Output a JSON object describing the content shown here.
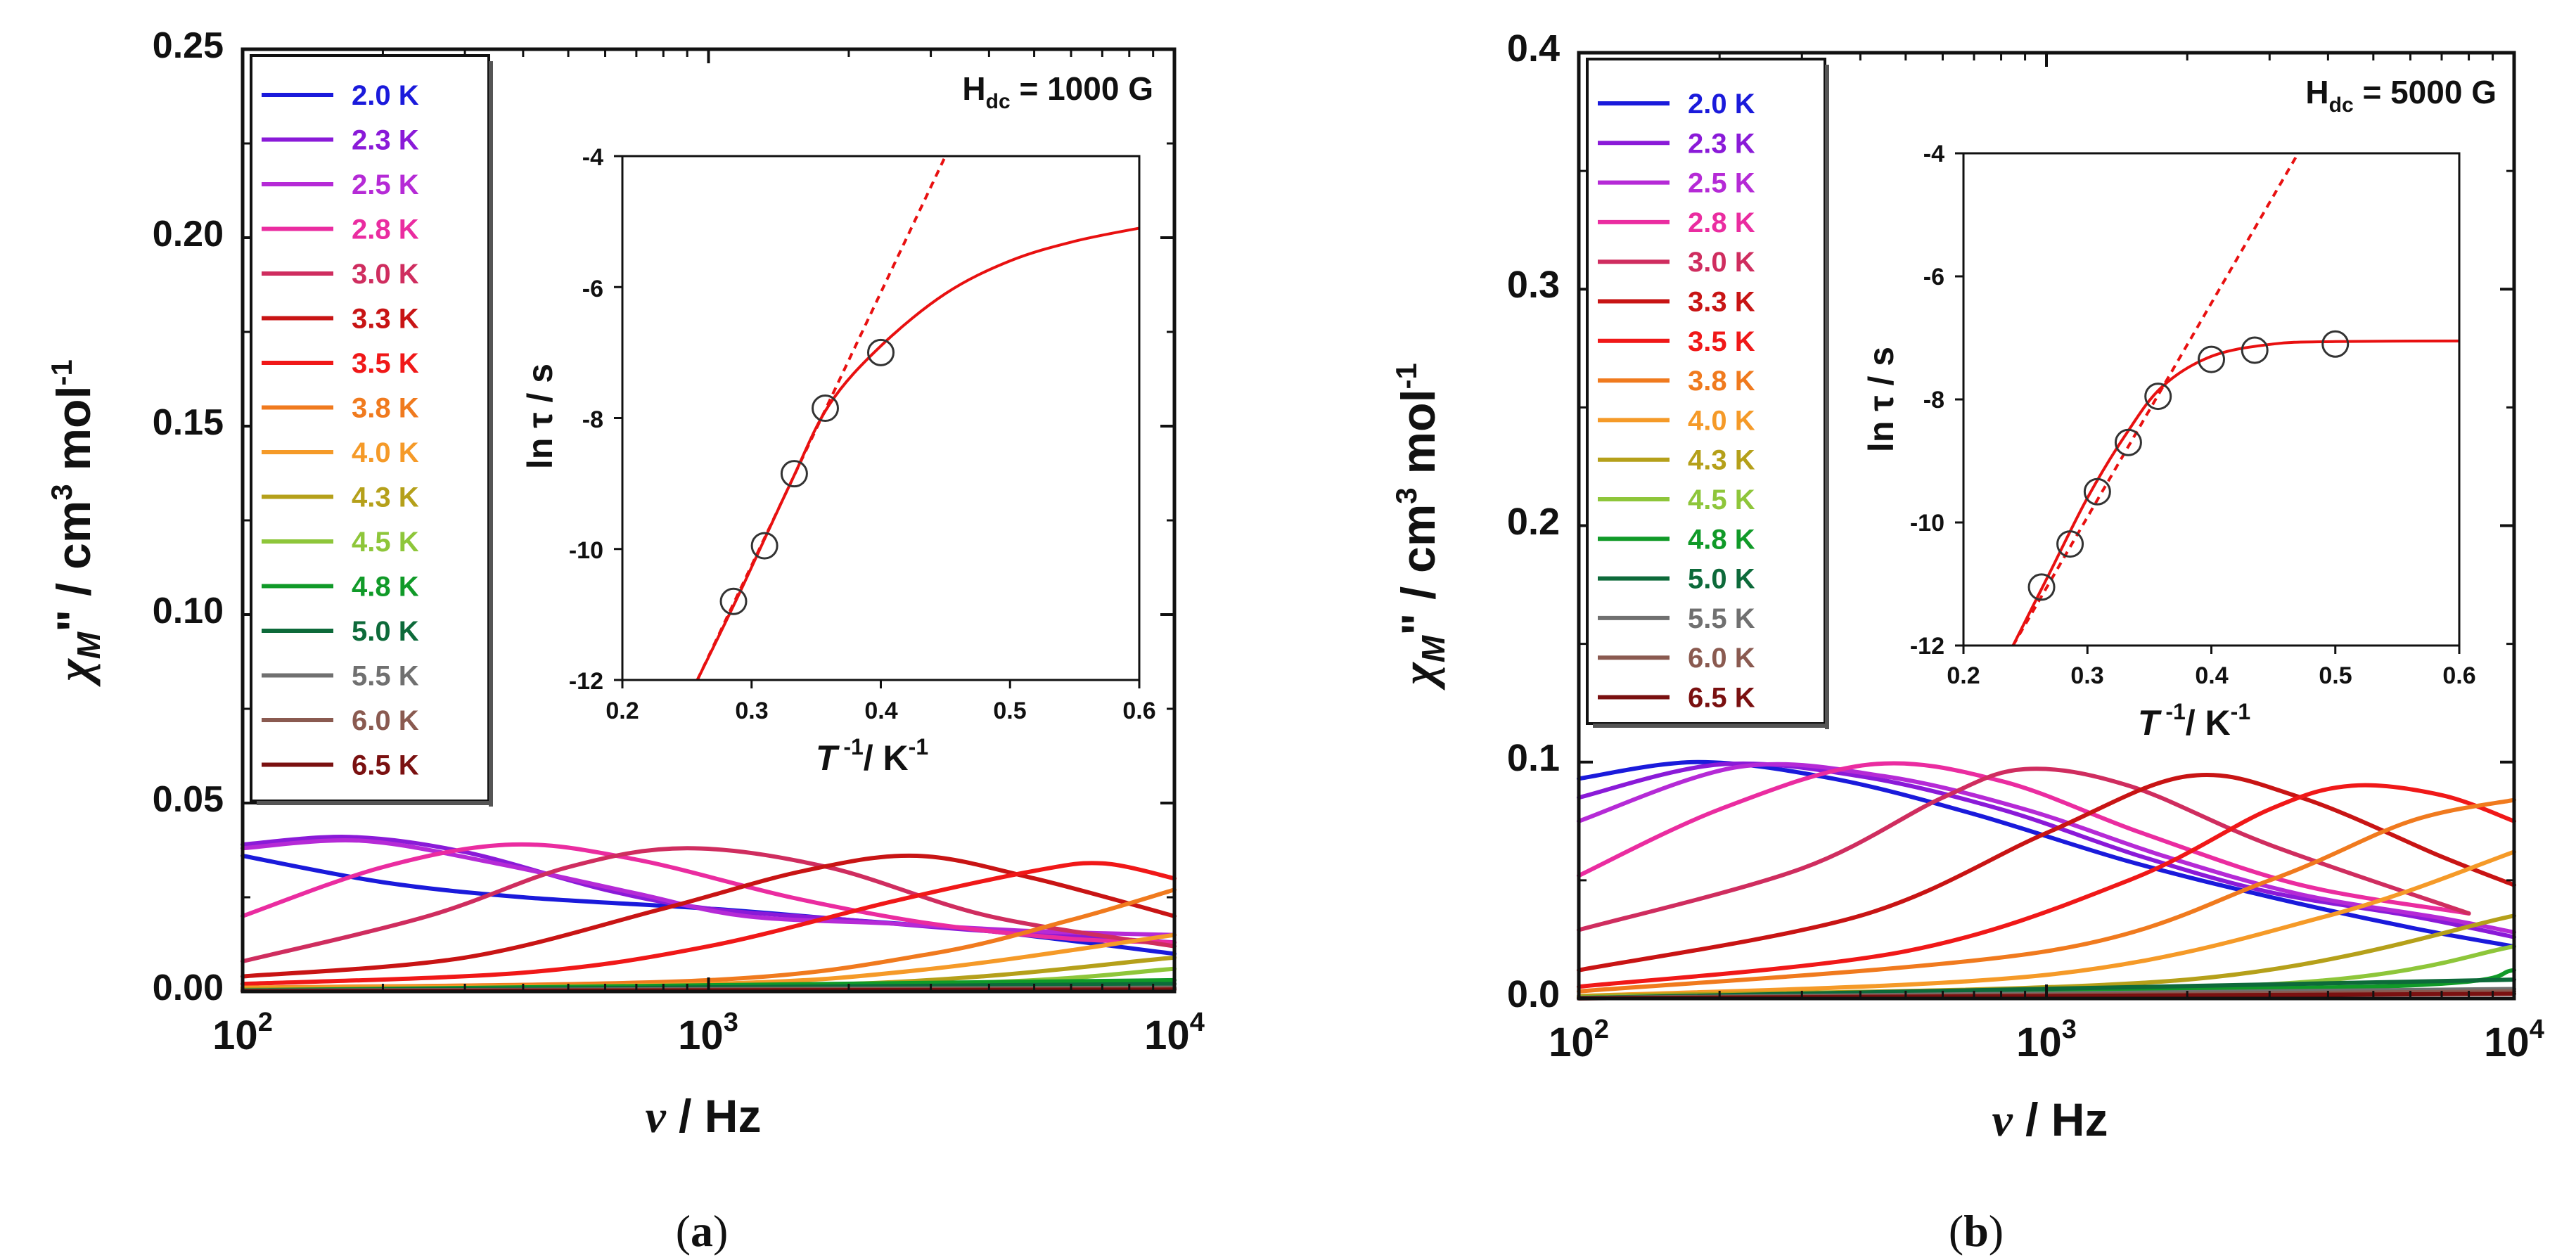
{
  "chart_data": [
    {
      "panel": "a",
      "type": "line",
      "caption_open": "(",
      "caption_letter": "a",
      "caption_close": ")",
      "field_label": "H_dc = 1000 G",
      "field_prefix": "H",
      "field_sub": "dc",
      "field_value": " = 1000 G",
      "xlabel": "ν / Hz",
      "xlabel_sym": "ν",
      "xlabel_unit": " / Hz",
      "ylabel": "χM'' / cm3 mol-1",
      "ylabel_sym": "χ",
      "ylabel_sub": "M",
      "ylabel_prime": "\"",
      "ylabel_mid": "  / cm",
      "ylabel_sup1": "3",
      "ylabel_mol": " mol",
      "ylabel_sup2": "-1",
      "xscale": "log",
      "xlim": [
        100,
        10000
      ],
      "ylim": [
        0,
        0.25
      ],
      "xtick_base": "10",
      "xtick_exps": [
        "2",
        "3",
        "4"
      ],
      "yticks": [
        "0.00",
        "0.05",
        "0.10",
        "0.15",
        "0.20",
        "0.25"
      ],
      "legend_position": "top-left",
      "series": [
        {
          "name": "2.0 K",
          "color": "#1a1adb",
          "points": [
            [
              100,
              0.036
            ],
            [
              200,
              0.029
            ],
            [
              400,
              0.025
            ],
            [
              1000,
              0.022
            ],
            [
              2000,
              0.019
            ],
            [
              4000,
              0.016
            ],
            [
              10000,
              0.01
            ]
          ]
        },
        {
          "name": "2.3 K",
          "color": "#8a1ad8",
          "points": [
            [
              100,
              0.039
            ],
            [
              170,
              0.041
            ],
            [
              300,
              0.037
            ],
            [
              600,
              0.027
            ],
            [
              1000,
              0.022
            ],
            [
              2000,
              0.019
            ],
            [
              4000,
              0.016
            ],
            [
              10000,
              0.013
            ]
          ]
        },
        {
          "name": "2.5 K",
          "color": "#b52ad6",
          "points": [
            [
              100,
              0.038
            ],
            [
              180,
              0.04
            ],
            [
              350,
              0.034
            ],
            [
              700,
              0.026
            ],
            [
              1200,
              0.02
            ],
            [
              2500,
              0.018
            ],
            [
              5000,
              0.016
            ],
            [
              10000,
              0.015
            ]
          ]
        },
        {
          "name": "2.8 K",
          "color": "#ea2ca0",
          "points": [
            [
              100,
              0.02
            ],
            [
              200,
              0.033
            ],
            [
              380,
              0.039
            ],
            [
              700,
              0.035
            ],
            [
              1500,
              0.025
            ],
            [
              3000,
              0.018
            ],
            [
              6000,
              0.014
            ],
            [
              10000,
              0.013
            ]
          ]
        },
        {
          "name": "3.0 K",
          "color": "#cf2d5f",
          "points": [
            [
              100,
              0.008
            ],
            [
              250,
              0.02
            ],
            [
              500,
              0.033
            ],
            [
              900,
              0.038
            ],
            [
              1800,
              0.033
            ],
            [
              4000,
              0.02
            ],
            [
              10000,
              0.012
            ]
          ]
        },
        {
          "name": "3.3 K",
          "color": "#c81414",
          "points": [
            [
              100,
              0.004
            ],
            [
              300,
              0.009
            ],
            [
              800,
              0.022
            ],
            [
              1600,
              0.032
            ],
            [
              2800,
              0.036
            ],
            [
              5000,
              0.03
            ],
            [
              10000,
              0.02
            ]
          ]
        },
        {
          "name": "3.5 K",
          "color": "#f01818",
          "points": [
            [
              100,
              0.002
            ],
            [
              400,
              0.005
            ],
            [
              1000,
              0.012
            ],
            [
              2500,
              0.024
            ],
            [
              5000,
              0.032
            ],
            [
              7000,
              0.034
            ],
            [
              10000,
              0.03
            ]
          ]
        },
        {
          "name": "3.8 K",
          "color": "#f07a1e",
          "points": [
            [
              100,
              0.001
            ],
            [
              1000,
              0.003
            ],
            [
              3000,
              0.01
            ],
            [
              6000,
              0.019
            ],
            [
              10000,
              0.027
            ]
          ]
        },
        {
          "name": "4.0 K",
          "color": "#f59a28",
          "points": [
            [
              100,
              0.001
            ],
            [
              1000,
              0.002
            ],
            [
              3000,
              0.006
            ],
            [
              10000,
              0.015
            ]
          ]
        },
        {
          "name": "4.3 K",
          "color": "#b5a01a",
          "points": [
            [
              100,
              0.0005
            ],
            [
              2000,
              0.002
            ],
            [
              10000,
              0.009
            ]
          ]
        },
        {
          "name": "4.5 K",
          "color": "#8ec63a",
          "points": [
            [
              100,
              0.0003
            ],
            [
              3000,
              0.002
            ],
            [
              10000,
              0.006
            ]
          ]
        },
        {
          "name": "4.8 K",
          "color": "#109a28",
          "points": [
            [
              100,
              0.0003
            ],
            [
              10000,
              0.003
            ]
          ]
        },
        {
          "name": "5.0 K",
          "color": "#0d6a3a",
          "points": [
            [
              100,
              0.0002
            ],
            [
              10000,
              0.002
            ]
          ]
        },
        {
          "name": "5.5 K",
          "color": "#707070",
          "points": [
            [
              100,
              0.0002
            ],
            [
              10000,
              0.001
            ]
          ]
        },
        {
          "name": "6.0 K",
          "color": "#8a5a50",
          "points": [
            [
              100,
              0.0001
            ],
            [
              10000,
              0.0008
            ]
          ]
        },
        {
          "name": "6.5 K",
          "color": "#7a1010",
          "points": [
            [
              100,
              0.0001
            ],
            [
              10000,
              0.0005
            ]
          ]
        }
      ],
      "inset": {
        "xlabel": "T -1/ K-1",
        "xlabel_sym": "T",
        "xlabel_sup1": " -1",
        "xlabel_unit": "/ K",
        "xlabel_sup2": "-1",
        "ylabel": "ln τ / s",
        "ylabel_text": "ln τ / s",
        "xlim": [
          0.2,
          0.6
        ],
        "ylim": [
          -12,
          -4
        ],
        "xticks": [
          "0.2",
          "0.3",
          "0.4",
          "0.5",
          "0.6"
        ],
        "yticks": [
          "-12",
          "-10",
          "-8",
          "-6",
          "-4"
        ],
        "points": [
          [
            0.286,
            -10.8
          ],
          [
            0.31,
            -9.95
          ],
          [
            0.333,
            -8.85
          ],
          [
            0.357,
            -7.85
          ],
          [
            0.4,
            -7.0
          ]
        ],
        "fit": [
          [
            0.258,
            -12.0
          ],
          [
            0.29,
            -10.7
          ],
          [
            0.33,
            -9.0
          ],
          [
            0.36,
            -7.8
          ],
          [
            0.4,
            -6.9
          ],
          [
            0.45,
            -6.1
          ],
          [
            0.5,
            -5.6
          ],
          [
            0.55,
            -5.3
          ],
          [
            0.6,
            -5.1
          ]
        ],
        "arrhenius": [
          [
            0.258,
            -12.0
          ],
          [
            0.45,
            -4.0
          ]
        ]
      }
    },
    {
      "panel": "b",
      "type": "line",
      "caption_open": "(",
      "caption_letter": "b",
      "caption_close": ")",
      "field_label": "H_dc = 5000 G",
      "field_prefix": "H",
      "field_sub": "dc",
      "field_value": " = 5000 G",
      "xlabel": "ν / Hz",
      "xlabel_sym": "ν",
      "xlabel_unit": " / Hz",
      "ylabel": "χM'' / cm3 mol-1",
      "ylabel_sym": "χ",
      "ylabel_sub": "M",
      "ylabel_prime": "\"",
      "ylabel_mid": "  / cm",
      "ylabel_sup1": "3",
      "ylabel_mol": " mol",
      "ylabel_sup2": "-1",
      "xscale": "log",
      "xlim": [
        100,
        10000
      ],
      "ylim": [
        0,
        0.4
      ],
      "xtick_base": "10",
      "xtick_exps": [
        "2",
        "3",
        "4"
      ],
      "yticks": [
        "0.0",
        "0.1",
        "0.2",
        "0.3",
        "0.4"
      ],
      "legend_position": "top-left",
      "series": [
        {
          "name": "2.0 K",
          "color": "#1a1adb",
          "points": [
            [
              100,
              0.093
            ],
            [
              180,
              0.1
            ],
            [
              350,
              0.093
            ],
            [
              700,
              0.078
            ],
            [
              1500,
              0.058
            ],
            [
              3000,
              0.043
            ],
            [
              6000,
              0.03
            ],
            [
              10000,
              0.022
            ]
          ]
        },
        {
          "name": "2.3 K",
          "color": "#8a1ad8",
          "points": [
            [
              100,
              0.085
            ],
            [
              200,
              0.099
            ],
            [
              400,
              0.094
            ],
            [
              800,
              0.08
            ],
            [
              1600,
              0.06
            ],
            [
              3000,
              0.045
            ],
            [
              6000,
              0.035
            ],
            [
              10000,
              0.026
            ]
          ]
        },
        {
          "name": "2.5 K",
          "color": "#b52ad6",
          "points": [
            [
              100,
              0.075
            ],
            [
              220,
              0.098
            ],
            [
              450,
              0.094
            ],
            [
              900,
              0.08
            ],
            [
              1800,
              0.06
            ],
            [
              3500,
              0.044
            ],
            [
              7000,
              0.034
            ],
            [
              10000,
              0.028
            ]
          ]
        },
        {
          "name": "2.8 K",
          "color": "#ea2ca0",
          "points": [
            [
              100,
              0.052
            ],
            [
              200,
              0.08
            ],
            [
              420,
              0.099
            ],
            [
              800,
              0.092
            ],
            [
              1600,
              0.07
            ],
            [
              3500,
              0.048
            ],
            [
              8000,
              0.036
            ]
          ]
        },
        {
          "name": "3.0 K",
          "color": "#cf2d5f",
          "points": [
            [
              100,
              0.029
            ],
            [
              300,
              0.055
            ],
            [
              600,
              0.085
            ],
            [
              900,
              0.097
            ],
            [
              1500,
              0.09
            ],
            [
              3000,
              0.065
            ],
            [
              8000,
              0.036
            ]
          ]
        },
        {
          "name": "3.3 K",
          "color": "#c81414",
          "points": [
            [
              100,
              0.012
            ],
            [
              400,
              0.035
            ],
            [
              1000,
              0.07
            ],
            [
              2000,
              0.094
            ],
            [
              3500,
              0.085
            ],
            [
              7000,
              0.06
            ],
            [
              10000,
              0.048
            ]
          ]
        },
        {
          "name": "3.5 K",
          "color": "#f01818",
          "points": [
            [
              100,
              0.005
            ],
            [
              500,
              0.02
            ],
            [
              1500,
              0.05
            ],
            [
              3000,
              0.08
            ],
            [
              4500,
              0.09
            ],
            [
              7000,
              0.086
            ],
            [
              10000,
              0.075
            ]
          ]
        },
        {
          "name": "3.8 K",
          "color": "#f07a1e",
          "points": [
            [
              100,
              0.003
            ],
            [
              1000,
              0.02
            ],
            [
              3000,
              0.05
            ],
            [
              6000,
              0.075
            ],
            [
              10000,
              0.084
            ]
          ]
        },
        {
          "name": "4.0 K",
          "color": "#f59a28",
          "points": [
            [
              100,
              0.001
            ],
            [
              1000,
              0.01
            ],
            [
              4000,
              0.035
            ],
            [
              10000,
              0.062
            ]
          ]
        },
        {
          "name": "4.3 K",
          "color": "#b5a01a",
          "points": [
            [
              100,
              0.001
            ],
            [
              2000,
              0.008
            ],
            [
              10000,
              0.035
            ]
          ]
        },
        {
          "name": "4.5 K",
          "color": "#8ec63a",
          "points": [
            [
              100,
              0.0005
            ],
            [
              3000,
              0.006
            ],
            [
              10000,
              0.022
            ]
          ]
        },
        {
          "name": "4.8 K",
          "color": "#109a28",
          "points": [
            [
              100,
              0.0003
            ],
            [
              5000,
              0.005
            ],
            [
              10000,
              0.012
            ]
          ]
        },
        {
          "name": "5.0 K",
          "color": "#0d6a3a",
          "points": [
            [
              100,
              0.0002
            ],
            [
              10000,
              0.008
            ]
          ]
        },
        {
          "name": "5.5 K",
          "color": "#707070",
          "points": [
            [
              100,
              0.0002
            ],
            [
              10000,
              0.004
            ]
          ]
        },
        {
          "name": "6.0 K",
          "color": "#8a5a50",
          "points": [
            [
              100,
              0.0001
            ],
            [
              10000,
              0.003
            ]
          ]
        },
        {
          "name": "6.5 K",
          "color": "#7a1010",
          "points": [
            [
              100,
              0.0001
            ],
            [
              10000,
              0.002
            ]
          ]
        }
      ],
      "inset": {
        "xlabel": "T -1/ K-1",
        "xlabel_sym": "T",
        "xlabel_sup1": " -1",
        "xlabel_unit": "/ K",
        "xlabel_sup2": "-1",
        "ylabel": "ln τ / s",
        "ylabel_text": "ln τ / s",
        "xlim": [
          0.2,
          0.6
        ],
        "ylim": [
          -12,
          -4
        ],
        "xticks": [
          "0.2",
          "0.3",
          "0.4",
          "0.5",
          "0.6"
        ],
        "yticks": [
          "-12",
          "-10",
          "-8",
          "-6",
          "-4"
        ],
        "points": [
          [
            0.263,
            -11.05
          ],
          [
            0.286,
            -10.35
          ],
          [
            0.308,
            -9.5
          ],
          [
            0.333,
            -8.7
          ],
          [
            0.357,
            -7.95
          ],
          [
            0.4,
            -7.35
          ],
          [
            0.435,
            -7.2
          ],
          [
            0.5,
            -7.1
          ]
        ],
        "fit": [
          [
            0.24,
            -12.0
          ],
          [
            0.27,
            -10.8
          ],
          [
            0.3,
            -9.6
          ],
          [
            0.33,
            -8.6
          ],
          [
            0.36,
            -7.8
          ],
          [
            0.4,
            -7.3
          ],
          [
            0.45,
            -7.1
          ],
          [
            0.5,
            -7.06
          ],
          [
            0.6,
            -7.05
          ]
        ],
        "arrhenius": [
          [
            0.24,
            -12.0
          ],
          [
            0.47,
            -3.9
          ]
        ]
      }
    }
  ]
}
